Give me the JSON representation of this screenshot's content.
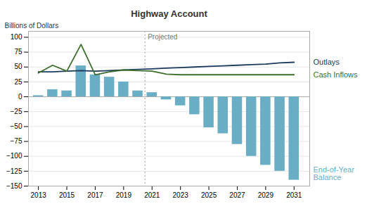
{
  "chart_data": {
    "type": "bar",
    "title": "Highway Account",
    "y_label": "Billions of Dollars",
    "x": [
      2013,
      2014,
      2015,
      2016,
      2017,
      2018,
      2019,
      2020,
      2021,
      2022,
      2023,
      2024,
      2025,
      2026,
      2027,
      2028,
      2029,
      2030,
      2031
    ],
    "series": [
      {
        "name": "End-of-Year\nBalance",
        "type": "bar",
        "color": "#6aaec6",
        "values": [
          2,
          12,
          10,
          52,
          37,
          33,
          25,
          10,
          7,
          -5,
          -15,
          -30,
          -52,
          -62,
          -80,
          -100,
          -115,
          -125,
          -140
        ]
      },
      {
        "name": "Outlays",
        "type": "line",
        "color": "#1b3a5c",
        "values": [
          42,
          42,
          43,
          44,
          43,
          44,
          45,
          46,
          47,
          48,
          49,
          50,
          51,
          52,
          53,
          54,
          55,
          57,
          58
        ]
      },
      {
        "name": "Cash Inflows",
        "type": "line",
        "color": "#3d6e2e",
        "values": [
          40,
          53,
          43,
          88,
          37,
          42,
          45,
          44,
          43,
          38,
          37,
          37,
          37,
          37,
          37,
          37,
          37,
          37,
          37
        ]
      }
    ],
    "xlim": [
      2012.3,
      2032.1
    ],
    "xticks": [
      2013,
      2015,
      2017,
      2019,
      2021,
      2023,
      2025,
      2027,
      2029,
      2031
    ],
    "ylim": [
      -150,
      110
    ],
    "yticks": [
      -150,
      -125,
      -100,
      -75,
      -50,
      -25,
      0,
      25,
      50,
      75,
      100
    ],
    "grid": true,
    "annotations": [
      {
        "text": "Projected",
        "x": 2020.5,
        "line_style": "dotted"
      }
    ]
  }
}
